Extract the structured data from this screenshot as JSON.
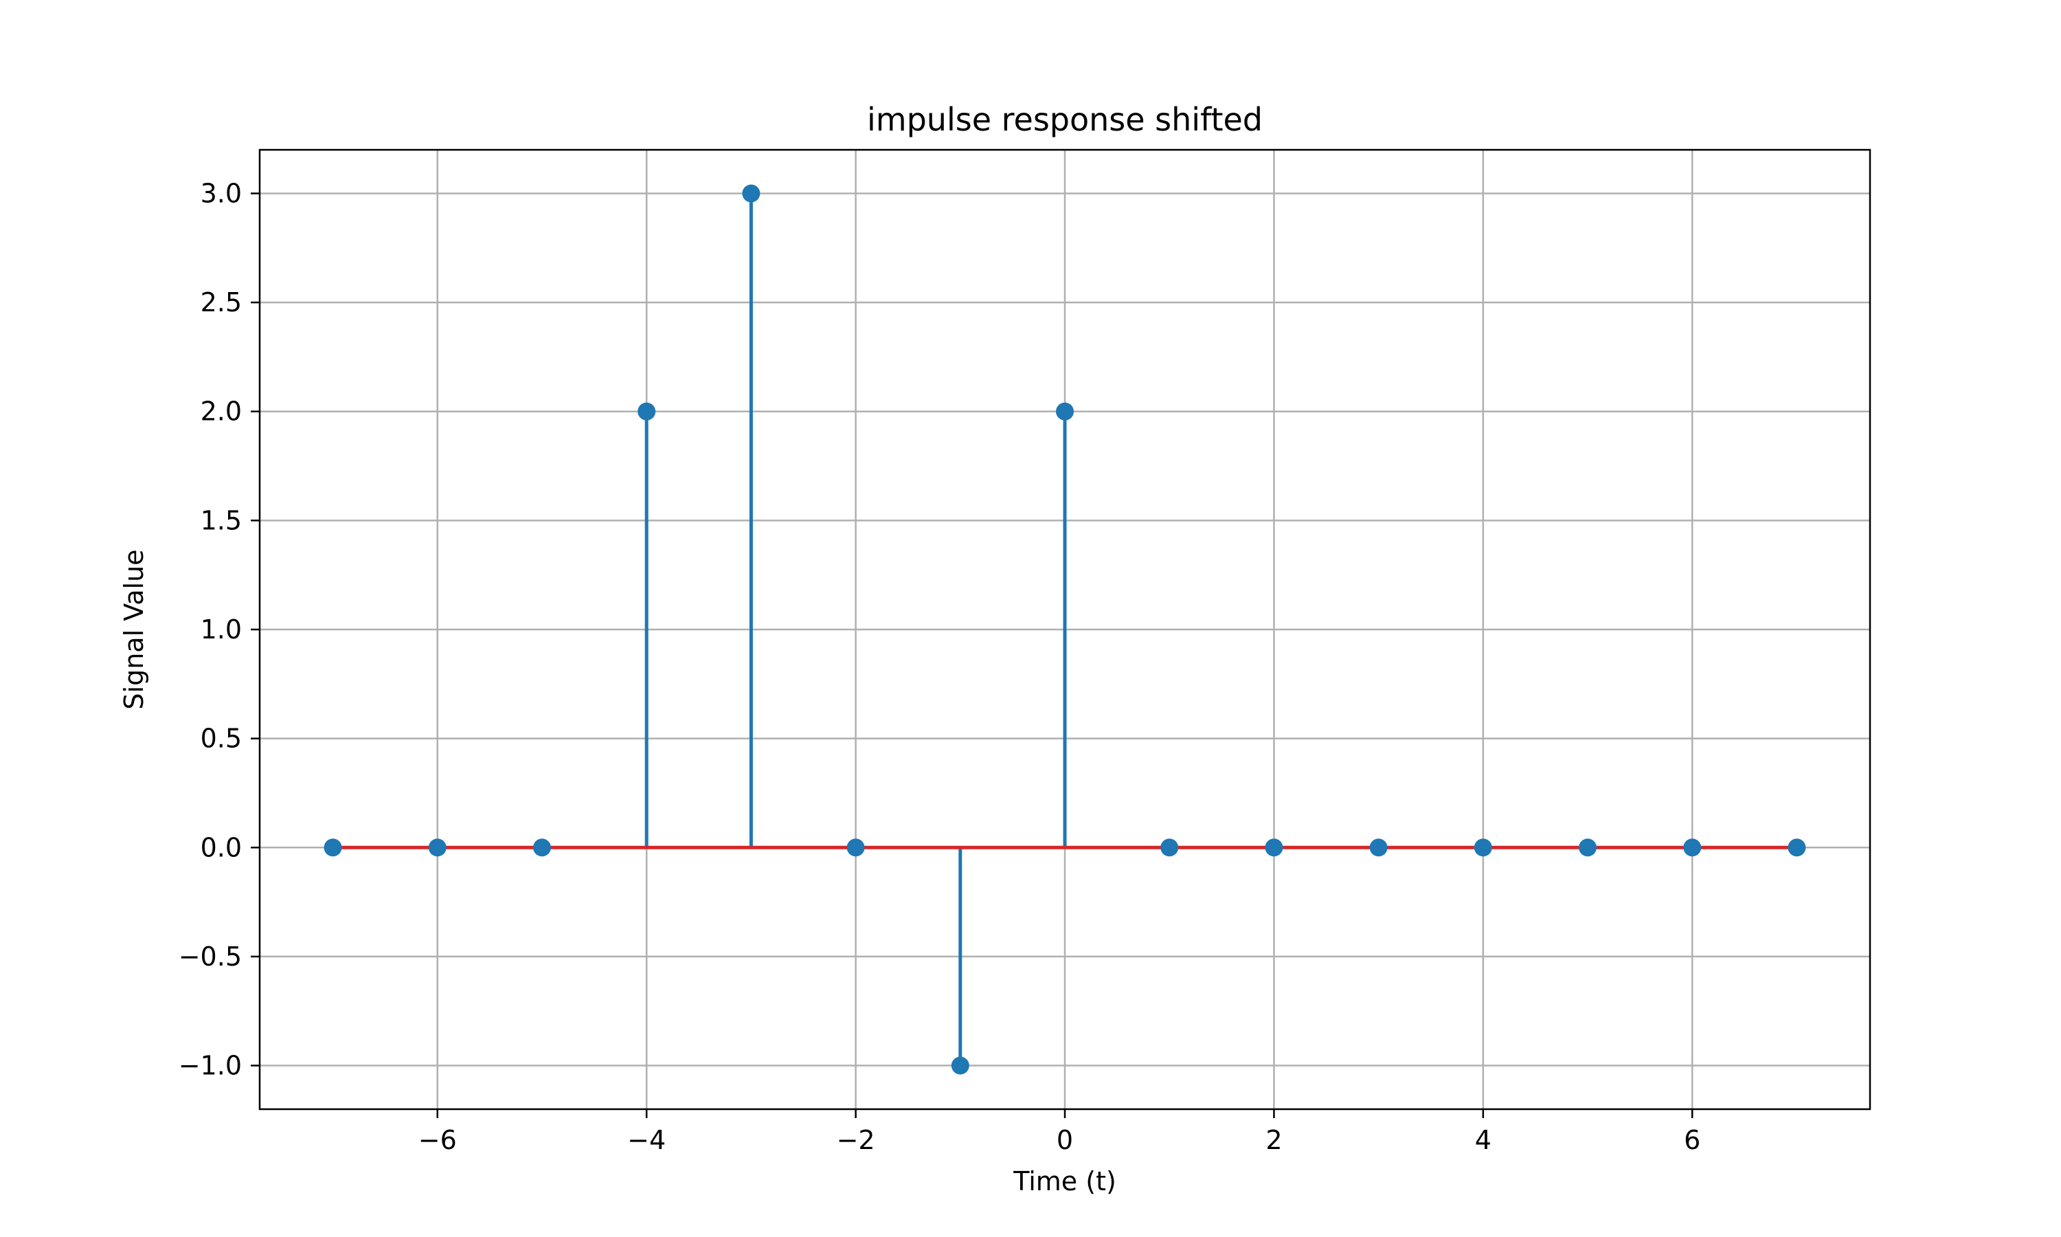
{
  "chart_data": {
    "type": "stem",
    "title": "impulse response shifted",
    "xlabel": "Time (t)",
    "ylabel": "Signal Value",
    "xlim": [
      -7.7,
      7.7
    ],
    "ylim": [
      -1.2,
      3.2
    ],
    "xticks": [
      -6,
      -4,
      -2,
      0,
      2,
      4,
      6
    ],
    "xtick_labels": [
      "−6",
      "−4",
      "−2",
      "0",
      "2",
      "4",
      "6"
    ],
    "yticks": [
      -1.0,
      -0.5,
      0.0,
      0.5,
      1.0,
      1.5,
      2.0,
      2.5,
      3.0
    ],
    "ytick_labels": [
      "−1.0",
      "−0.5",
      "0.0",
      "0.5",
      "1.0",
      "1.5",
      "2.0",
      "2.5",
      "3.0"
    ],
    "grid": true,
    "baseline": 0,
    "x": [
      -7,
      -6,
      -5,
      -4,
      -3,
      -2,
      -1,
      0,
      1,
      2,
      3,
      4,
      5,
      6,
      7
    ],
    "y": [
      0,
      0,
      0,
      2,
      3,
      0,
      -1,
      2,
      0,
      0,
      0,
      0,
      0,
      0,
      0
    ],
    "colors": {
      "stem": "#1f77b4",
      "marker": "#1f77b4",
      "baseline": "#d62728",
      "grid": "#b0b0b0",
      "axes": "#000000"
    }
  }
}
